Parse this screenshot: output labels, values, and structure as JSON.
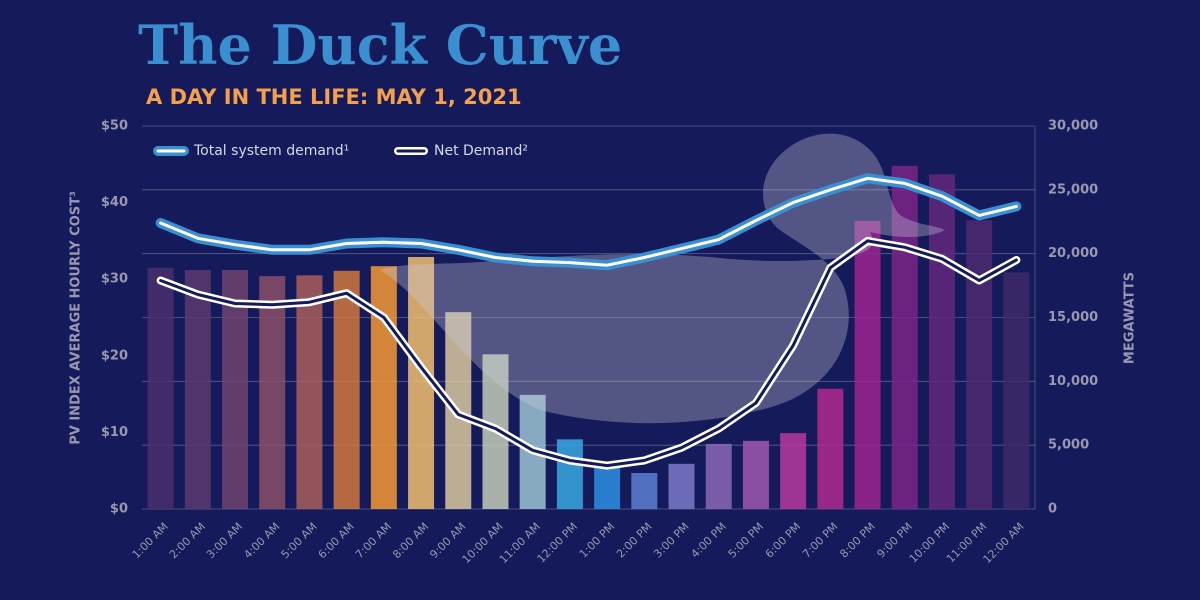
{
  "chart_data": {
    "type": "bar",
    "title": "The Duck Curve",
    "subtitle": "A DAY IN THE LIFE: MAY 1, 2021",
    "y_label": "PV INDEX AVERAGE HOURLY COST³",
    "y2_label": "MEGAWATTS",
    "categories": [
      "1:00 AM",
      "2:00 AM",
      "3:00 AM",
      "4:00 AM",
      "5:00 AM",
      "6:00 AM",
      "7:00 AM",
      "8:00 AM",
      "9:00 AM",
      "10:00 AM",
      "11:00 AM",
      "12:00 PM",
      "1:00 PM",
      "2:00 PM",
      "3:00 PM",
      "4:00 PM",
      "5:00 PM",
      "6:00 PM",
      "7:00 PM",
      "8:00 PM",
      "9:00 PM",
      "10:00 PM",
      "11:00 PM",
      "12:00 AM"
    ],
    "values": [
      31.5,
      31.2,
      31.2,
      30.4,
      30.5,
      31.1,
      31.7,
      32.9,
      25.7,
      20.2,
      14.9,
      9.1,
      6.1,
      4.7,
      5.9,
      8.5,
      8.9,
      9.9,
      15.7,
      37.6,
      44.8,
      43.7,
      37.7,
      30.9
    ],
    "colors": [
      "#4a2f6e",
      "#5a3a70",
      "#6e4470",
      "#8a5068",
      "#a85e5a",
      "#d0783f",
      "#f59a35",
      "#f2c070",
      "#d9c9a0",
      "#c4cdb8",
      "#9cc4d4",
      "#3aa8e0",
      "#2b8fe0",
      "#5a7fd0",
      "#7a7ac8",
      "#8a68b8",
      "#a058b0",
      "#b83aa0",
      "#b02a90",
      "#9a2590",
      "#7a2588",
      "#62287c",
      "#4e2a72",
      "#3e2a68"
    ],
    "series": [
      {
        "name": "Total system demand¹",
        "color": "#3a8fd0",
        "axis": "y2",
        "values": [
          22400,
          21200,
          20700,
          20300,
          20300,
          20800,
          20900,
          20800,
          20300,
          19700,
          19400,
          19300,
          19100,
          19700,
          20400,
          21100,
          22600,
          24000,
          25000,
          25900,
          25500,
          24500,
          23000,
          23700
        ]
      },
      {
        "name": "Net Demand²",
        "color": "#ffffff",
        "axis": "y2",
        "values": [
          17900,
          16800,
          16100,
          16000,
          16200,
          16900,
          15000,
          11100,
          7400,
          6300,
          4600,
          3800,
          3400,
          3800,
          4800,
          6300,
          8300,
          12800,
          18900,
          21000,
          20500,
          19600,
          17900,
          19500
        ]
      }
    ],
    "ylim": [
      0,
      50
    ],
    "yticks": [
      {
        "value": 0,
        "label": "$0"
      },
      {
        "value": 10,
        "label": "$10"
      },
      {
        "value": 20,
        "label": "$20"
      },
      {
        "value": 30,
        "label": "$30"
      },
      {
        "value": 40,
        "label": "$40"
      },
      {
        "value": 50,
        "label": "$50"
      }
    ],
    "y2lim": [
      0,
      30000
    ],
    "y2ticks": [
      0,
      {
        "value": 5000,
        "label": "5,000"
      },
      {
        "value": 10000,
        "label": "10,000"
      },
      {
        "value": 15000,
        "label": "15,000"
      },
      {
        "value": 20000,
        "label": "20,000"
      },
      {
        "value": 25000,
        "label": "25,000"
      },
      {
        "value": 30000,
        "label": "30,000"
      }
    ],
    "grid": true
  }
}
